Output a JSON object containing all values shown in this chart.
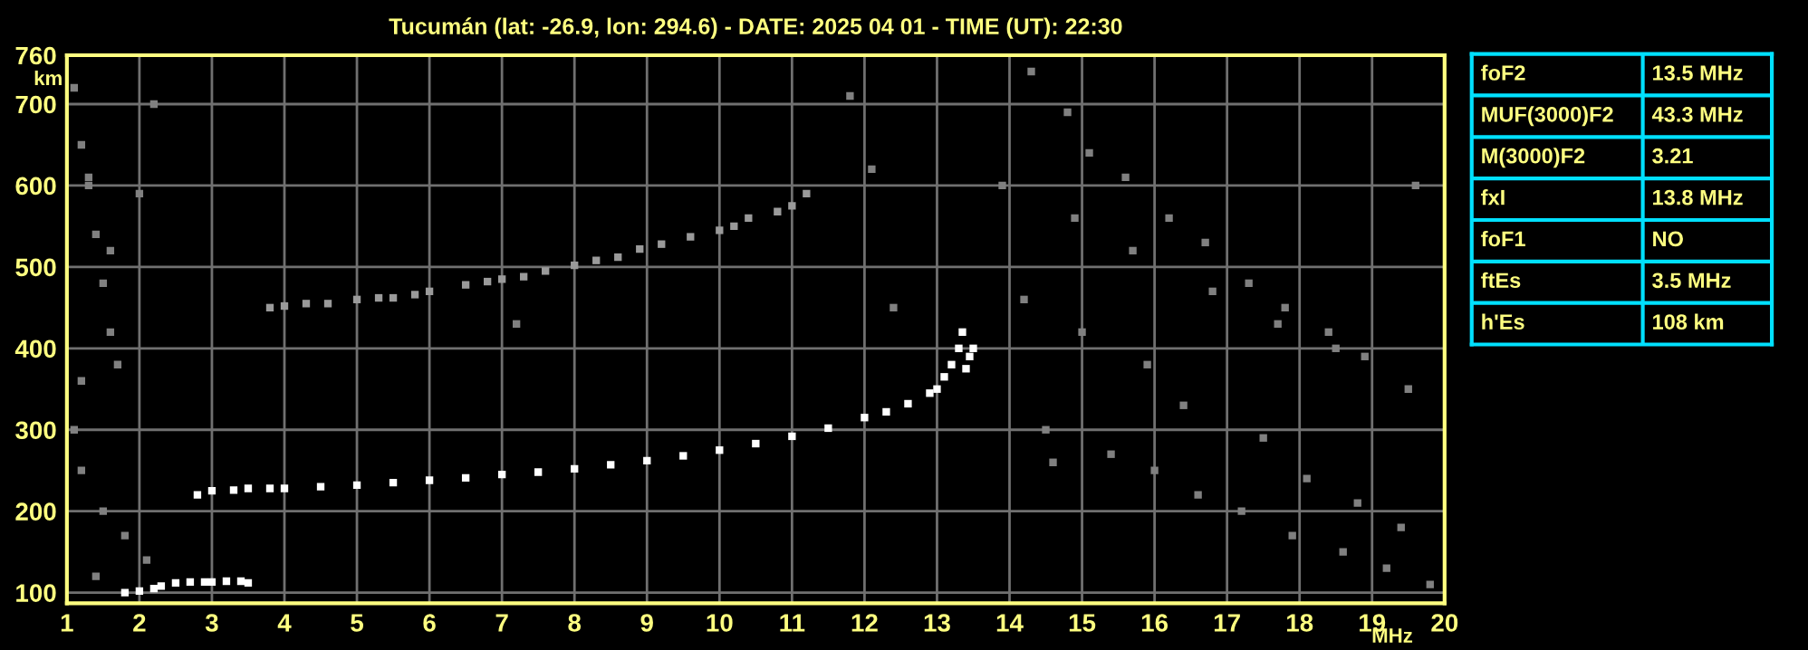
{
  "chart_data": [
    {
      "type": "scatter",
      "title": "Tucumán (lat: -26.9, lon: 294.6) - DATE: 2025 04 01 - TIME (UT): 22:30",
      "xlabel": "MHz",
      "ylabel": "km",
      "xlim": [
        1,
        20
      ],
      "ylim": [
        87,
        760
      ],
      "xticks": [
        1,
        2,
        3,
        4,
        5,
        6,
        7,
        8,
        9,
        10,
        11,
        12,
        13,
        14,
        15,
        16,
        17,
        18,
        19,
        20
      ],
      "yticks": [
        100,
        200,
        300,
        400,
        500,
        600,
        700,
        760
      ],
      "grid": true,
      "legend": false,
      "marker": "square",
      "series": [
        {
          "color": "#ffffff",
          "x": [
            2.8,
            3.0,
            3.3,
            3.5,
            3.8,
            4.0,
            4.5,
            5.0,
            5.5,
            6.0,
            6.5,
            7.0,
            7.5,
            8.0,
            8.5,
            9.0,
            9.5,
            10.0,
            10.5,
            11.0,
            11.5,
            12.0,
            12.3,
            12.6,
            12.9,
            13.0,
            13.1,
            13.2,
            13.3,
            13.35,
            13.4,
            13.45,
            13.5
          ],
          "values": [
            220,
            225,
            226,
            228,
            228,
            228,
            230,
            232,
            235,
            238,
            241,
            245,
            248,
            252,
            257,
            262,
            268,
            275,
            283,
            292,
            302,
            315,
            322,
            332,
            345,
            350,
            365,
            380,
            400,
            420,
            375,
            390,
            400
          ]
        },
        {
          "color": "#ffffff",
          "x": [
            1.8,
            2.0,
            2.2,
            2.3,
            2.5,
            2.7,
            2.9,
            3.0,
            3.2,
            3.4,
            3.5
          ],
          "values": [
            100,
            102,
            105,
            108,
            112,
            113,
            113,
            113,
            114,
            114,
            112
          ]
        },
        {
          "color": "#9a9a9a",
          "x": [
            3.8,
            4.0,
            4.3,
            4.6,
            5.0,
            5.3,
            5.5,
            5.8,
            6.0,
            6.5,
            6.8,
            7.0,
            7.3,
            7.6,
            8.0,
            8.3,
            8.6,
            8.9,
            9.2,
            9.6,
            10.0,
            10.2,
            10.4,
            10.8,
            11.0,
            11.2
          ],
          "values": [
            450,
            452,
            455,
            455,
            460,
            462,
            462,
            466,
            470,
            478,
            482,
            485,
            488,
            495,
            502,
            508,
            512,
            522,
            528,
            537,
            545,
            550,
            560,
            568,
            575,
            590
          ]
        },
        {
          "color": "#808080",
          "x": [
            1.1,
            1.2,
            1.3,
            1.4,
            1.5,
            1.6,
            1.7,
            1.1,
            1.2,
            1.5,
            1.8,
            2.1,
            2.2,
            1.3,
            1.6,
            1.2,
            1.4,
            2.0,
            14.3,
            14.8,
            15.1,
            15.6,
            16.2,
            16.7,
            17.3,
            17.8,
            18.4,
            18.9,
            19.5,
            14.5,
            15.4,
            16.0,
            16.6,
            17.2,
            17.9,
            18.6,
            19.2,
            19.8,
            14.2,
            15.0,
            15.9,
            16.4,
            17.5,
            18.1,
            18.8,
            19.4,
            14.9,
            15.7,
            16.8,
            17.7,
            18.5,
            19.6,
            11.8,
            12.1,
            12.4,
            7.2,
            13.9,
            14.6
          ],
          "values": [
            720,
            650,
            600,
            540,
            480,
            420,
            380,
            300,
            250,
            200,
            170,
            140,
            700,
            610,
            520,
            360,
            120,
            590,
            740,
            690,
            640,
            610,
            560,
            530,
            480,
            450,
            420,
            390,
            350,
            300,
            270,
            250,
            220,
            200,
            170,
            150,
            130,
            110,
            460,
            420,
            380,
            330,
            290,
            240,
            210,
            180,
            560,
            520,
            470,
            430,
            400,
            600,
            710,
            620,
            450,
            430,
            600,
            260
          ]
        }
      ]
    },
    {
      "type": "other",
      "annotations": [
        "foF2",
        "13.5 MHz",
        "MUF(3000)F2",
        "43.3 MHz",
        "M(3000)F2",
        "3.21",
        "fxI",
        "13.8 MHz",
        "foF1",
        "NO",
        "ftEs",
        "3.5 MHz",
        "h'Es",
        "108 km"
      ]
    }
  ]
}
